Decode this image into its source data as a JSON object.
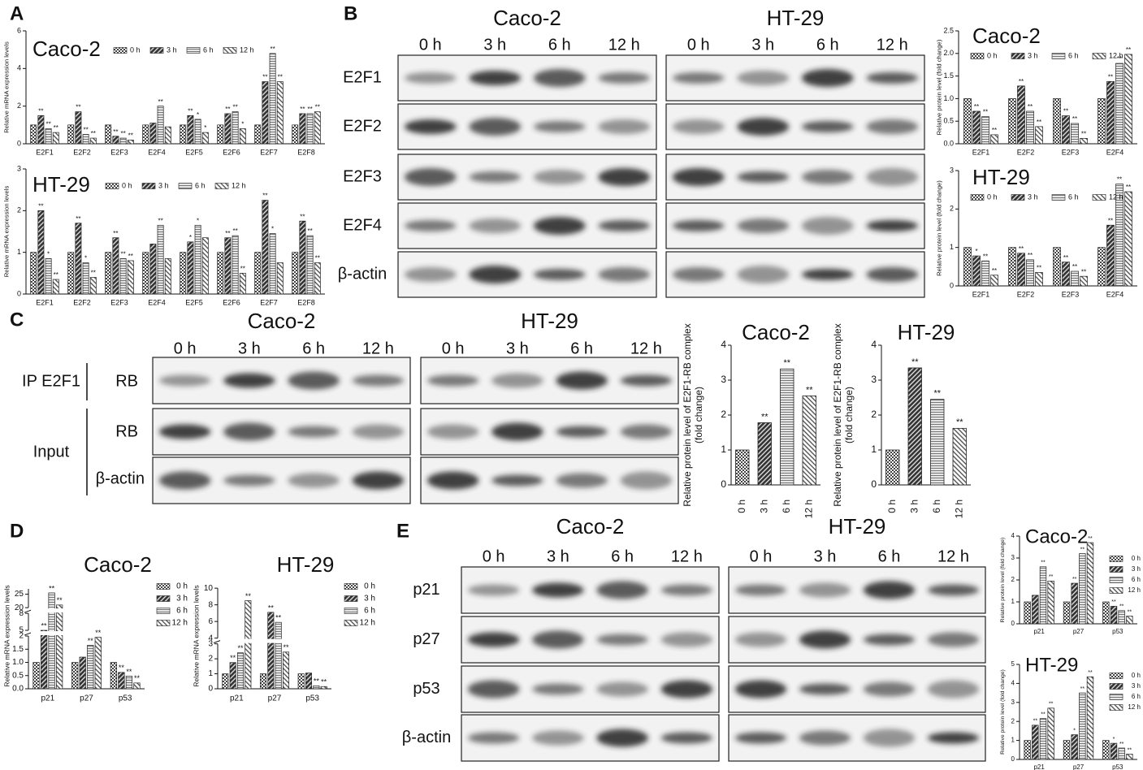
{
  "panels": [
    {
      "label": "A"
    },
    {
      "label": "B",
      "row_labels": [
        "E2F1",
        "E2F2",
        "E2F3",
        "E2F4",
        "β-actin"
      ],
      "blots": [
        {
          "cell_line": "Caco-2",
          "lanes": [
            "0 h",
            "3 h",
            "6 h",
            "12 h"
          ]
        },
        {
          "cell_line": "HT-29",
          "lanes": [
            "0 h",
            "3 h",
            "6 h",
            "12 h"
          ]
        }
      ]
    },
    {
      "label": "C",
      "groups": [
        "IP E2F1",
        "Input"
      ],
      "row_labels": [
        "RB",
        "RB",
        "β-actin"
      ],
      "blots": [
        {
          "cell_line": "Caco-2",
          "lanes": [
            "0 h",
            "3 h",
            "6 h",
            "12 h"
          ]
        },
        {
          "cell_line": "HT-29",
          "lanes": [
            "0 h",
            "3 h",
            "6 h",
            "12 h"
          ]
        }
      ]
    },
    {
      "label": "D"
    },
    {
      "label": "E",
      "row_labels": [
        "p21",
        "p27",
        "p53",
        "β-actin"
      ],
      "blots": [
        {
          "cell_line": "Caco-2",
          "lanes": [
            "0 h",
            "3 h",
            "6 h",
            "12 h"
          ]
        },
        {
          "cell_line": "HT-29",
          "lanes": [
            "0 h",
            "3 h",
            "6 h",
            "12 h"
          ]
        }
      ]
    }
  ],
  "chart_data": [
    {
      "type": "bar",
      "title": "Caco-2",
      "ylabel": "Relative mRNA expression levels",
      "legend": "top",
      "categories": [
        "E2F1",
        "E2F2",
        "E2F3",
        "E2F4",
        "E2F5",
        "E2F6",
        "E2F7",
        "E2F8"
      ],
      "ylim": [
        0,
        6
      ],
      "yticks": [
        0,
        2,
        4,
        6
      ],
      "series": [
        {
          "name": "0 h",
          "pattern": "checker",
          "values": [
            1,
            1,
            1,
            1,
            1,
            1,
            1,
            1
          ],
          "stars": [
            null,
            null,
            null,
            null,
            null,
            null,
            null,
            null
          ]
        },
        {
          "name": "3 h",
          "pattern": "dark",
          "values": [
            1.5,
            1.7,
            0.4,
            1.1,
            1.5,
            1.6,
            3.3,
            1.6
          ],
          "stars": [
            "**",
            "**",
            "**",
            null,
            "**",
            "**",
            "**",
            "**"
          ]
        },
        {
          "name": "6 h",
          "pattern": "hlines",
          "values": [
            0.8,
            0.5,
            0.3,
            2.0,
            1.3,
            1.7,
            4.8,
            1.6
          ],
          "stars": [
            "**",
            "**",
            "**",
            "**",
            "*",
            "**",
            "**",
            "**"
          ]
        },
        {
          "name": "12 h",
          "pattern": "light",
          "values": [
            0.6,
            0.3,
            0.2,
            0.9,
            0.6,
            0.8,
            3.3,
            1.7
          ],
          "stars": [
            "**",
            "**",
            "**",
            null,
            "*",
            "*",
            "**",
            "**"
          ]
        }
      ]
    },
    {
      "type": "bar",
      "title": "HT-29",
      "ylabel": "Relative mRNA expression levels",
      "legend": "top",
      "categories": [
        "E2F1",
        "E2F2",
        "E2F3",
        "E2F4",
        "E2F5",
        "E2F6",
        "E2F7",
        "E2F8"
      ],
      "ylim": [
        0,
        3
      ],
      "yticks": [
        0,
        1,
        2,
        3
      ],
      "series": [
        {
          "name": "0 h",
          "pattern": "checker",
          "values": [
            1,
            1,
            1,
            1,
            1,
            1,
            1,
            1
          ],
          "stars": [
            null,
            null,
            null,
            null,
            null,
            null,
            null,
            null
          ]
        },
        {
          "name": "3 h",
          "pattern": "dark",
          "values": [
            2.0,
            1.7,
            1.35,
            1.2,
            1.25,
            1.35,
            2.25,
            1.75
          ],
          "stars": [
            "**",
            "**",
            "**",
            null,
            "*",
            "**",
            "**",
            "**"
          ]
        },
        {
          "name": "6 h",
          "pattern": "hlines",
          "values": [
            0.85,
            0.75,
            0.85,
            1.65,
            1.65,
            1.4,
            1.45,
            1.4
          ],
          "stars": [
            "*",
            "*",
            "**",
            "**",
            "*",
            "**",
            "*",
            "**"
          ]
        },
        {
          "name": "12 h",
          "pattern": "light",
          "values": [
            0.35,
            0.4,
            0.8,
            0.85,
            1.35,
            0.5,
            0.75,
            0.75
          ],
          "stars": [
            "**",
            "**",
            "**",
            null,
            null,
            "**",
            null,
            "**"
          ]
        }
      ]
    },
    {
      "type": "bar",
      "title": "Caco-2",
      "ylabel": "Relative protein level (fold change)",
      "legend": "top",
      "categories": [
        "E2F1",
        "E2F2",
        "E2F3",
        "E2F4"
      ],
      "ylim": [
        0,
        2.5
      ],
      "yticks": [
        {
          "value": 0,
          "label": "0.0"
        },
        0.5,
        {
          "value": 1,
          "label": "1.0"
        },
        1.5,
        {
          "value": 2,
          "label": "2.0"
        },
        2.5
      ],
      "series": [
        {
          "name": "0 h",
          "pattern": "checker",
          "values": [
            1,
            1,
            1,
            1
          ],
          "stars": [
            null,
            null,
            null,
            null
          ]
        },
        {
          "name": "3 h",
          "pattern": "dark",
          "values": [
            0.72,
            1.28,
            0.62,
            1.38
          ],
          "stars": [
            "**",
            "**",
            "**",
            "**"
          ]
        },
        {
          "name": "6 h",
          "pattern": "hlines",
          "values": [
            0.6,
            0.72,
            0.45,
            1.78
          ],
          "stars": [
            "**",
            "**",
            "**",
            "**"
          ]
        },
        {
          "name": "12 h",
          "pattern": "light",
          "values": [
            0.2,
            0.38,
            0.12,
            1.98
          ],
          "stars": [
            "**",
            "**",
            "**",
            "**"
          ]
        }
      ]
    },
    {
      "type": "bar",
      "title": "HT-29",
      "ylabel": "Relative protein level (fold change)",
      "legend": "top",
      "categories": [
        "E2F1",
        "E2F2",
        "E2F3",
        "E2F4"
      ],
      "ylim": [
        0,
        3
      ],
      "yticks": [
        0,
        1,
        2,
        3
      ],
      "series": [
        {
          "name": "0 h",
          "pattern": "checker",
          "values": [
            1,
            1,
            1,
            1
          ],
          "stars": [
            null,
            null,
            null,
            null
          ]
        },
        {
          "name": "3 h",
          "pattern": "dark",
          "values": [
            0.78,
            0.85,
            0.62,
            1.58
          ],
          "stars": [
            "*",
            "**",
            "**",
            "**"
          ]
        },
        {
          "name": "6 h",
          "pattern": "hlines",
          "values": [
            0.65,
            0.68,
            0.38,
            2.65
          ],
          "stars": [
            "**",
            "**",
            "**",
            "**"
          ]
        },
        {
          "name": "12 h",
          "pattern": "light",
          "values": [
            0.28,
            0.35,
            0.25,
            2.45
          ],
          "stars": [
            "**",
            "**",
            "**",
            "**"
          ]
        }
      ]
    },
    {
      "type": "bar",
      "title": "Caco-2",
      "ylabel": [
        "Relative protein level of E2F1-RB complex",
        "(fold change)"
      ],
      "categories": [
        "0 h",
        "3 h",
        "6 h",
        "12 h"
      ],
      "values": [
        1,
        1.78,
        3.32,
        2.55
      ],
      "stars": [
        null,
        "**",
        "**",
        "**"
      ],
      "patterns": [
        "checker",
        "dark",
        "hlines",
        "light"
      ],
      "ylim": [
        0,
        4
      ],
      "yticks": [
        0,
        1,
        2,
        3,
        4
      ]
    },
    {
      "type": "bar",
      "title": "HT-29",
      "ylabel": [
        "Relative protein level of E2F1-RB complex",
        "(fold change)"
      ],
      "categories": [
        "0 h",
        "3 h",
        "6 h",
        "12 h"
      ],
      "values": [
        1,
        3.35,
        2.45,
        1.62
      ],
      "stars": [
        null,
        "**",
        "**",
        "**"
      ],
      "patterns": [
        "checker",
        "dark",
        "hlines",
        "light"
      ],
      "ylim": [
        0,
        4
      ],
      "yticks": [
        0,
        1,
        2,
        3,
        4
      ]
    },
    {
      "type": "bar",
      "title": "Caco-2",
      "ylabel": "Relative mRNA expression levels",
      "legend": "right",
      "categories": [
        "p21",
        "p27",
        "p53"
      ],
      "ysegments": [
        {
          "ylim": [
            0,
            2
          ],
          "yticks": [
            {
              "value": 0,
              "label": "0.0"
            },
            0.5,
            {
              "value": 1,
              "label": "1.0"
            },
            1.5,
            2
          ]
        },
        {
          "ylim": [
            5,
            8
          ],
          "yticks": [
            5,
            8
          ]
        },
        {
          "ylim": [
            20,
            27
          ],
          "yticks": [
            20,
            25
          ]
        }
      ],
      "series": [
        {
          "name": "0 h",
          "pattern": "checker",
          "values": [
            1,
            1,
            1
          ],
          "stars": [
            null,
            null,
            null
          ]
        },
        {
          "name": "3 h",
          "pattern": "dark",
          "values": [
            2.6,
            1.2,
            0.62
          ],
          "stars": [
            "**",
            null,
            "**"
          ]
        },
        {
          "name": "6 h",
          "pattern": "hlines",
          "values": [
            25.5,
            1.65,
            0.48
          ],
          "stars": [
            "**",
            "**",
            "**"
          ]
        },
        {
          "name": "12 h",
          "pattern": "light",
          "values": [
            21,
            1.95,
            0.22
          ],
          "stars": [
            "**",
            "**",
            "**"
          ]
        }
      ]
    },
    {
      "type": "bar",
      "title": "HT-29",
      "ylabel": "Relative mRNA expression levels",
      "legend": "right",
      "categories": [
        "p21",
        "p27",
        "p53"
      ],
      "ysegments": [
        {
          "ylim": [
            0,
            3
          ],
          "yticks": [
            0,
            1,
            2,
            3
          ]
        },
        {
          "ylim": [
            4,
            10
          ],
          "yticks": [
            4,
            6,
            8,
            10
          ]
        }
      ],
      "series": [
        {
          "name": "0 h",
          "pattern": "checker",
          "values": [
            1,
            1,
            1
          ],
          "stars": [
            null,
            null,
            null
          ]
        },
        {
          "name": "3 h",
          "pattern": "dark",
          "values": [
            1.75,
            7.1,
            1.05
          ],
          "stars": [
            "**",
            "**",
            null
          ]
        },
        {
          "name": "6 h",
          "pattern": "hlines",
          "values": [
            2.4,
            5.9,
            0.2
          ],
          "stars": [
            "**",
            "**",
            "**"
          ]
        },
        {
          "name": "12 h",
          "pattern": "light",
          "values": [
            8.5,
            2.45,
            0.15
          ],
          "stars": [
            "**",
            "**",
            "**"
          ]
        }
      ]
    },
    {
      "type": "bar",
      "title": "Caco-2",
      "ylabel": "Relative protein level (fold change)",
      "legend": "right",
      "categories": [
        "p21",
        "p27",
        "p53"
      ],
      "ylim": [
        0,
        4
      ],
      "yticks": [
        0,
        1,
        2,
        3,
        4
      ],
      "series": [
        {
          "name": "0 h",
          "pattern": "checker",
          "values": [
            1,
            1,
            1
          ],
          "stars": [
            null,
            null,
            null
          ]
        },
        {
          "name": "3 h",
          "pattern": "dark",
          "values": [
            1.3,
            1.85,
            0.8
          ],
          "stars": [
            null,
            "**",
            "**"
          ]
        },
        {
          "name": "6 h",
          "pattern": "hlines",
          "values": [
            2.6,
            3.2,
            0.6
          ],
          "stars": [
            "**",
            "**",
            "**"
          ]
        },
        {
          "name": "12 h",
          "pattern": "light",
          "values": [
            1.95,
            3.7,
            0.35
          ],
          "stars": [
            "**",
            "**",
            "**"
          ]
        }
      ]
    },
    {
      "type": "bar",
      "title": "HT-29",
      "ylabel": "Relative protein level (fold change)",
      "legend": "right",
      "categories": [
        "p21",
        "p27",
        "p53"
      ],
      "ylim": [
        0,
        5
      ],
      "yticks": [
        0,
        1,
        2,
        3,
        4,
        5
      ],
      "series": [
        {
          "name": "0 h",
          "pattern": "checker",
          "values": [
            1,
            1,
            1
          ],
          "stars": [
            null,
            null,
            null
          ]
        },
        {
          "name": "3 h",
          "pattern": "dark",
          "values": [
            1.8,
            1.3,
            0.85
          ],
          "stars": [
            "**",
            "*",
            "*"
          ]
        },
        {
          "name": "6 h",
          "pattern": "hlines",
          "values": [
            2.15,
            3.5,
            0.6
          ],
          "stars": [
            "**",
            "**",
            "**"
          ]
        },
        {
          "name": "12 h",
          "pattern": "light",
          "values": [
            2.7,
            4.35,
            0.28
          ],
          "stars": [
            "**",
            "**",
            "**"
          ]
        }
      ]
    }
  ]
}
